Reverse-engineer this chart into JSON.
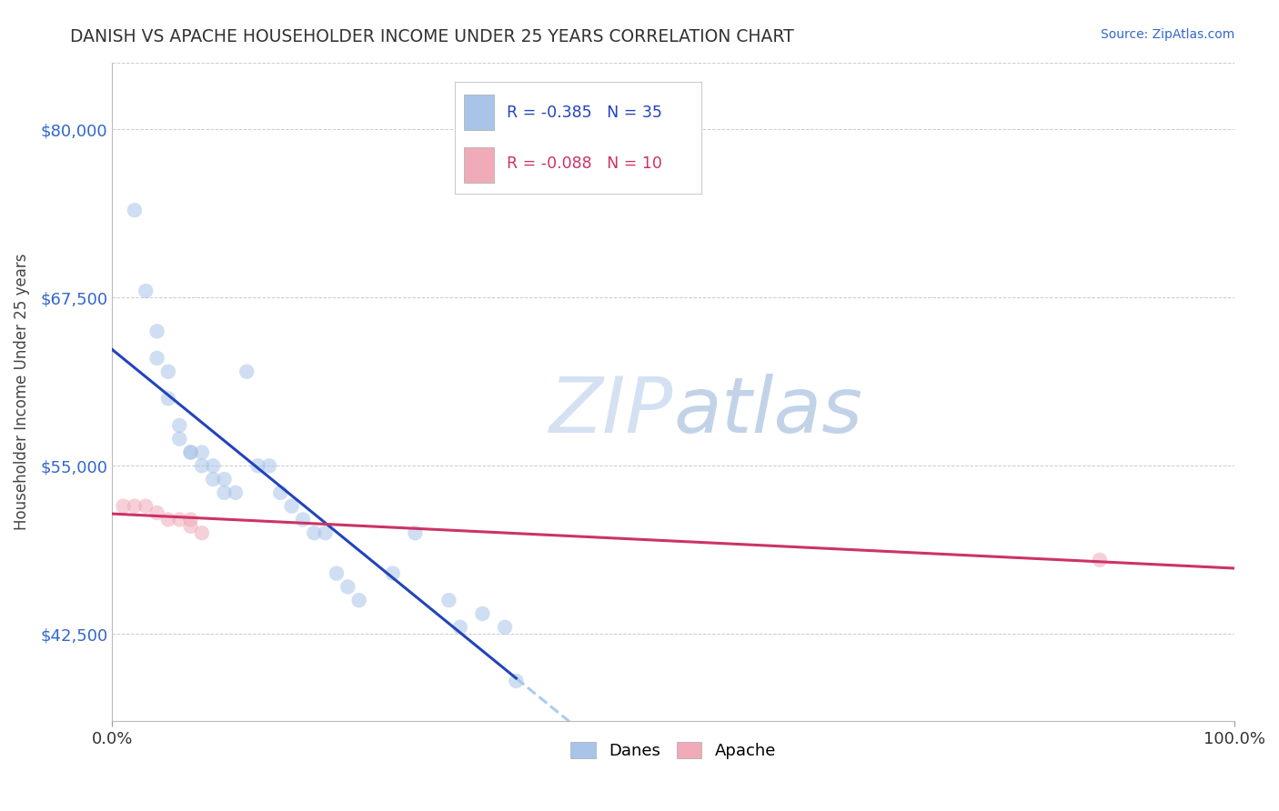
{
  "title": "DANISH VS APACHE HOUSEHOLDER INCOME UNDER 25 YEARS CORRELATION CHART",
  "source_text": "Source: ZipAtlas.com",
  "ylabel": "Householder Income Under 25 years",
  "xlim": [
    0.0,
    1.0
  ],
  "ylim": [
    36000,
    85000
  ],
  "ytick_positions": [
    42500,
    55000,
    67500,
    80000
  ],
  "ytick_labels": [
    "$42,500",
    "$55,000",
    "$67,500",
    "$80,000"
  ],
  "danes_x": [
    0.02,
    0.03,
    0.04,
    0.04,
    0.05,
    0.05,
    0.06,
    0.06,
    0.07,
    0.07,
    0.08,
    0.08,
    0.09,
    0.09,
    0.1,
    0.1,
    0.11,
    0.12,
    0.13,
    0.14,
    0.15,
    0.16,
    0.17,
    0.18,
    0.19,
    0.2,
    0.21,
    0.22,
    0.25,
    0.27,
    0.3,
    0.31,
    0.33,
    0.35,
    0.36
  ],
  "danes_y": [
    74000,
    68000,
    65000,
    63000,
    62000,
    60000,
    58000,
    57000,
    56000,
    56000,
    56000,
    55000,
    55000,
    54000,
    54000,
    53000,
    53000,
    62000,
    55000,
    55000,
    53000,
    52000,
    51000,
    50000,
    50000,
    47000,
    46000,
    45000,
    47000,
    50000,
    45000,
    43000,
    44000,
    43000,
    39000
  ],
  "apache_x": [
    0.01,
    0.02,
    0.03,
    0.04,
    0.05,
    0.06,
    0.07,
    0.07,
    0.08,
    0.88
  ],
  "apache_y": [
    52000,
    52000,
    52000,
    51500,
    51000,
    51000,
    51000,
    50500,
    50000,
    48000
  ],
  "dane_color": "#a8c4e8",
  "apache_color": "#f0aab8",
  "dane_line_color": "#2244bb",
  "apache_line_color": "#cc3366",
  "trend_line_color": "#aaccee",
  "dane_r": "-0.385",
  "dane_n": "35",
  "apache_r": "-0.088",
  "apache_n": "10",
  "legend_dane_label": "Danes",
  "legend_apache_label": "Apache",
  "background_color": "#ffffff",
  "grid_color": "#cccccc",
  "title_color": "#333333",
  "source_color": "#3366cc",
  "ylabel_color": "#444444",
  "ytick_color": "#3366cc",
  "marker_size": 140,
  "marker_alpha": 0.55,
  "line_width": 2.2,
  "watermark_color": "#dce8f5",
  "watermark_zip_color": "#c8d8ec",
  "watermark_atlas_color": "#c8d8ec"
}
